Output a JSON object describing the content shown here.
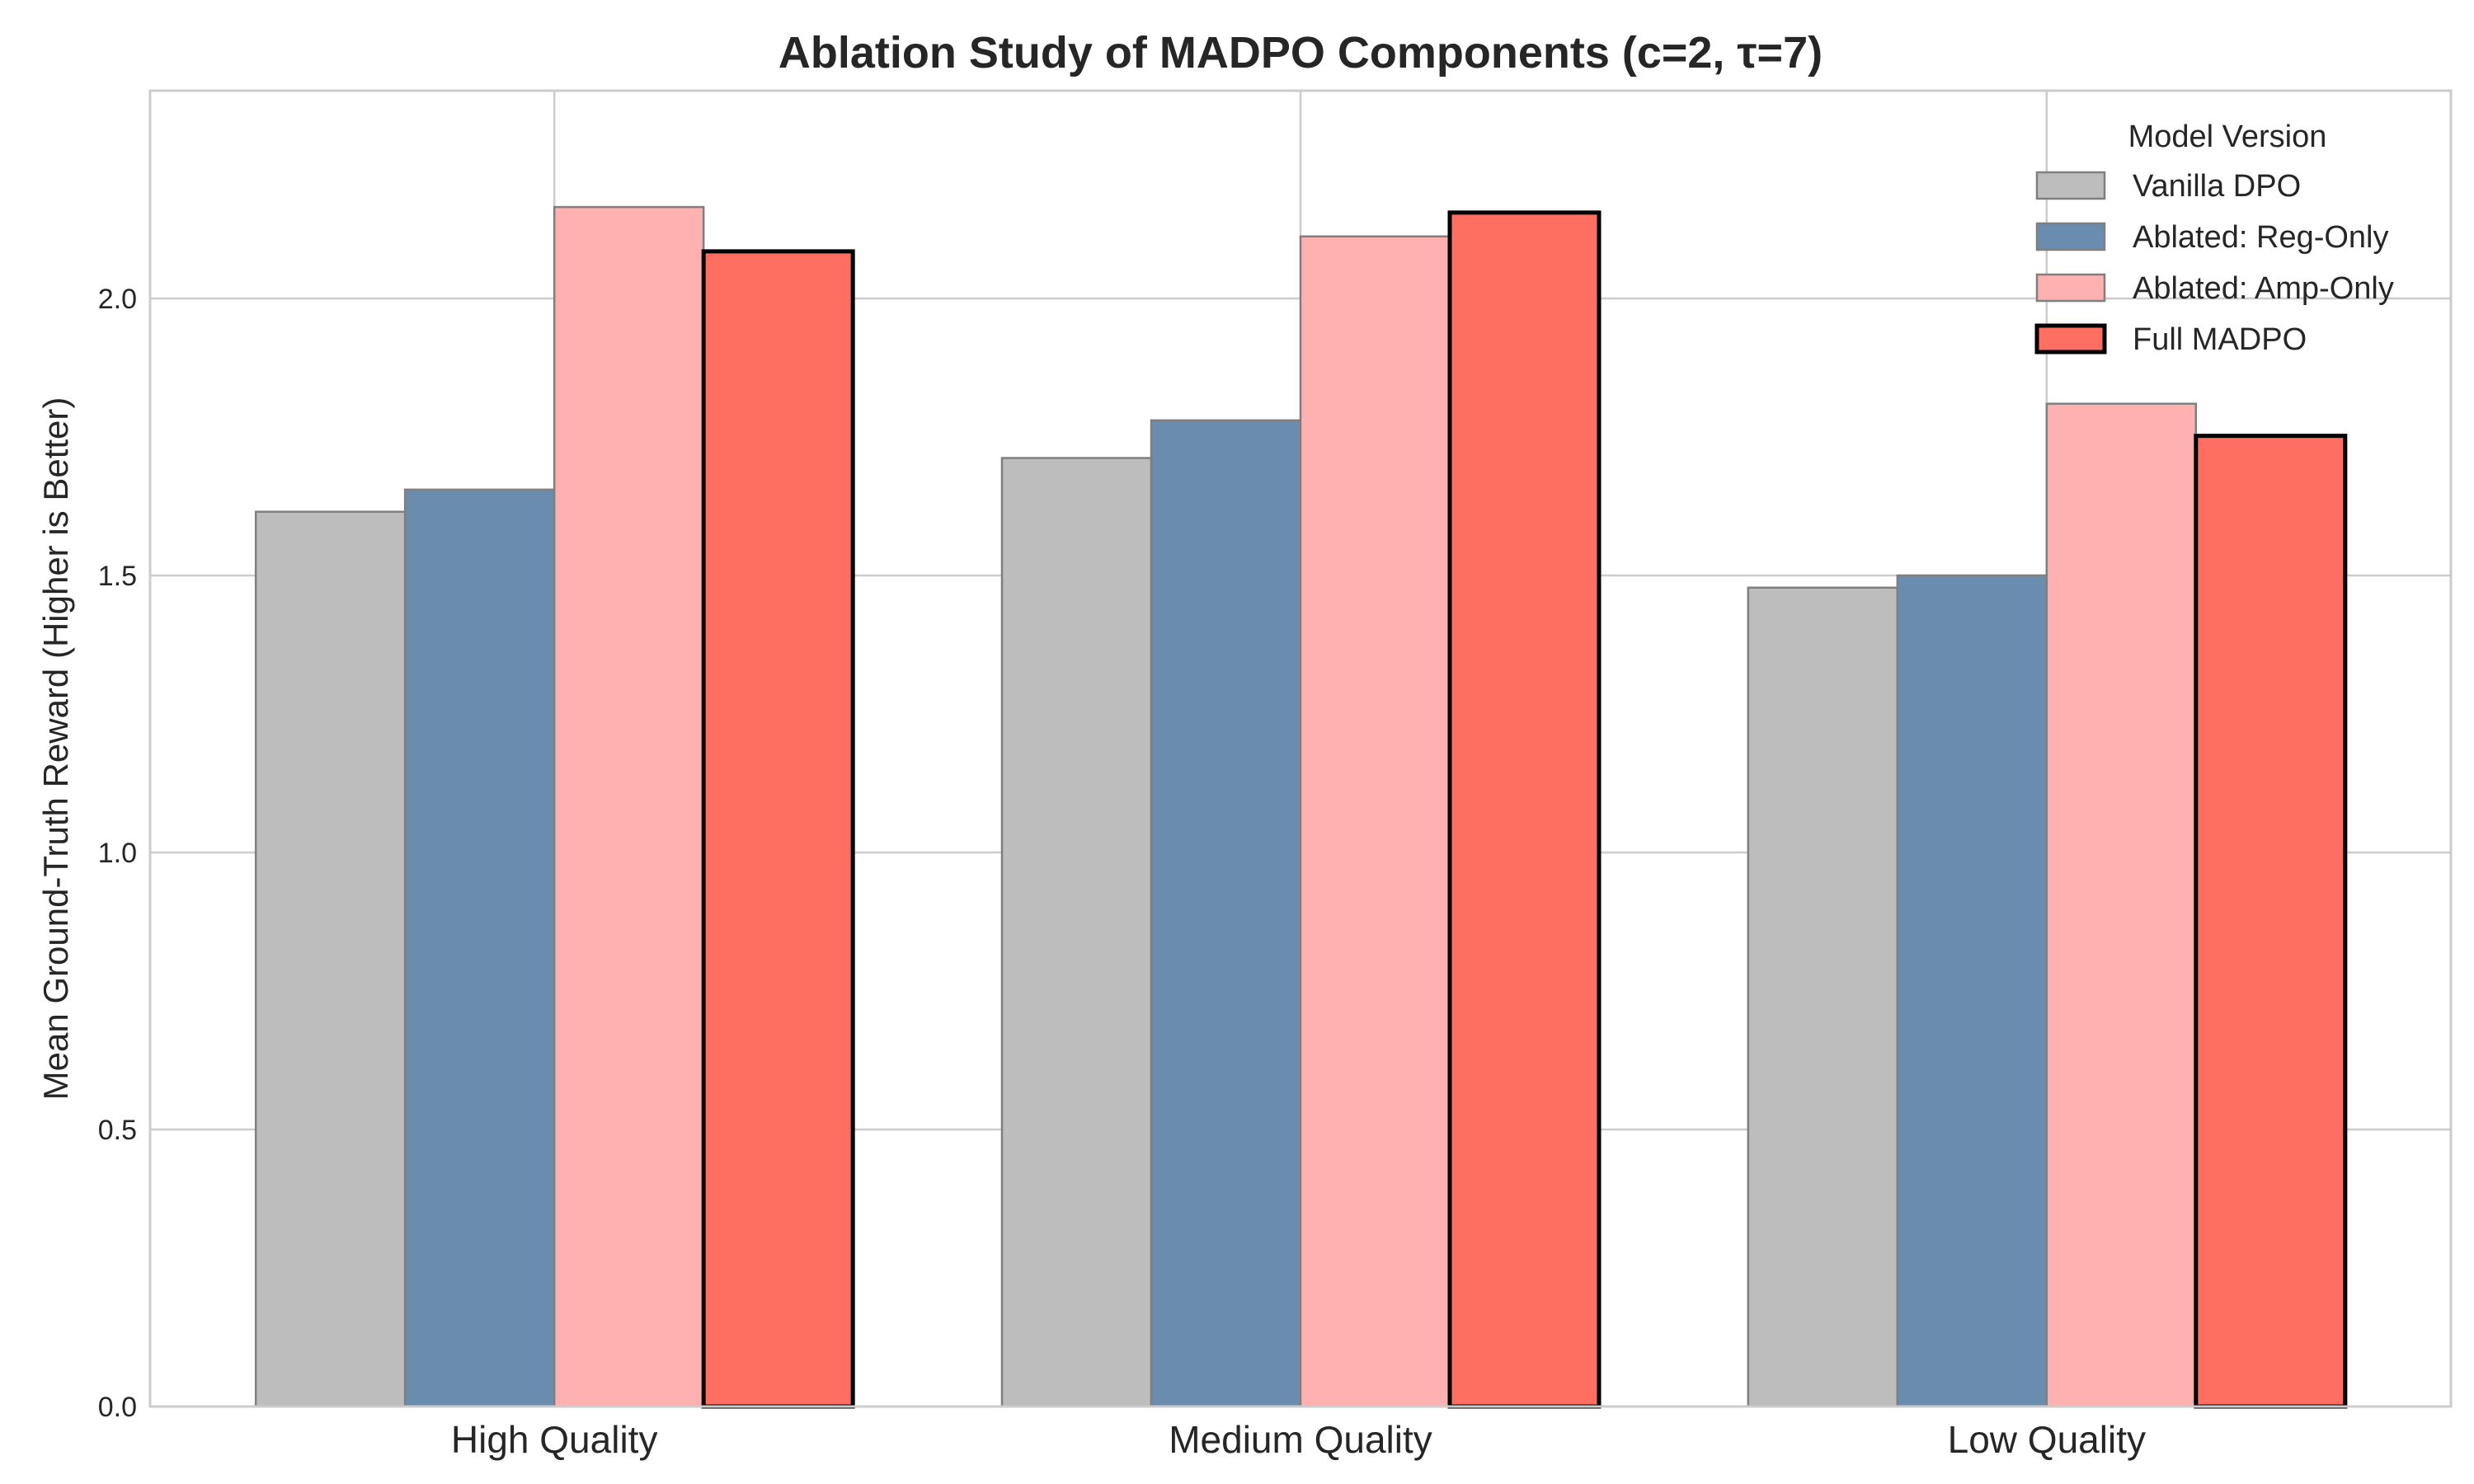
{
  "chart_data": {
    "type": "bar",
    "title": "Ablation Study of MADPO Components (c=2, τ=7)",
    "xlabel": "",
    "ylabel": "Mean Ground-Truth Reward (Higher is Better)",
    "ylim": [
      0,
      2.375
    ],
    "yticks": [
      0.0,
      0.5,
      1.0,
      1.5,
      2.0
    ],
    "ytick_labels": [
      "0.0",
      "0.5",
      "1.0",
      "1.5",
      "2.0"
    ],
    "grid": true,
    "categories": [
      "High Quality",
      "Medium Quality",
      "Low Quality"
    ],
    "legend": {
      "title": "Model Version",
      "placement": "top-right"
    },
    "series": [
      {
        "name": "Vanilla DPO",
        "color": "#bdbdbd",
        "edge": "#7f7f7f",
        "bold_edge": false,
        "values": [
          1.615,
          1.712,
          1.478
        ]
      },
      {
        "name": "Ablated: Reg-Only",
        "color": "#6a8daf",
        "edge": "#7f7f7f",
        "bold_edge": false,
        "values": [
          1.655,
          1.78,
          1.5
        ]
      },
      {
        "name": "Ablated: Amp-Only",
        "color": "#ffb0b0",
        "edge": "#7f7f7f",
        "bold_edge": false,
        "values": [
          2.165,
          2.112,
          1.81
        ]
      },
      {
        "name": "Full MADPO",
        "color": "#ff6f61",
        "edge": "#000000",
        "bold_edge": true,
        "values": [
          2.085,
          2.155,
          1.752
        ]
      }
    ]
  }
}
